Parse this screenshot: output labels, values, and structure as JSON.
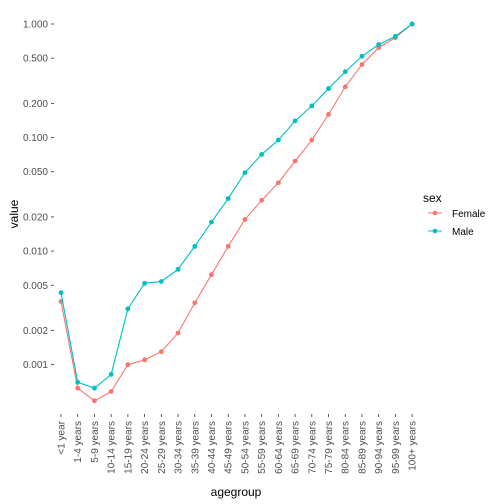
{
  "chart_data": {
    "type": "line",
    "xlabel": "agegroup",
    "ylabel": "value",
    "y_scale": "log",
    "ylim": [
      0.00045,
      1.0
    ],
    "y_ticks": [
      {
        "value": 0.001,
        "label": "0.001"
      },
      {
        "value": 0.002,
        "label": "0.002"
      },
      {
        "value": 0.005,
        "label": "0.005"
      },
      {
        "value": 0.01,
        "label": "0.010"
      },
      {
        "value": 0.02,
        "label": "0.020"
      },
      {
        "value": 0.05,
        "label": "0.050"
      },
      {
        "value": 0.1,
        "label": "0.100"
      },
      {
        "value": 0.2,
        "label": "0.200"
      },
      {
        "value": 0.5,
        "label": "0.500"
      },
      {
        "value": 1.0,
        "label": "1.000"
      }
    ],
    "categories": [
      "<1 year",
      "1-4 years",
      "5-9 years",
      "10-14 years",
      "15-19 years",
      "20-24 years",
      "25-29 years",
      "30-34 years",
      "35-39 years",
      "40-44 years",
      "45-49 years",
      "50-54 years",
      "55-59 years",
      "60-64 years",
      "65-69 years",
      "70-74 years",
      "75-79 years",
      "80-84 years",
      "85-89 years",
      "90-94 years",
      "95-99 years",
      "100+ years"
    ],
    "grid": false,
    "legend": {
      "title": "sex",
      "position": "right"
    },
    "series": [
      {
        "name": "Female",
        "color": "#F8766D",
        "values": [
          0.0036,
          0.00062,
          0.00048,
          0.00058,
          0.001,
          0.0011,
          0.0013,
          0.0019,
          0.0035,
          0.0062,
          0.011,
          0.019,
          0.028,
          0.04,
          0.062,
          0.095,
          0.16,
          0.28,
          0.44,
          0.62,
          0.76,
          1.0
        ]
      },
      {
        "name": "Male",
        "color": "#00BFC4",
        "values": [
          0.0043,
          0.0007,
          0.00062,
          0.00082,
          0.0031,
          0.0052,
          0.0054,
          0.0069,
          0.011,
          0.018,
          0.029,
          0.049,
          0.071,
          0.095,
          0.14,
          0.19,
          0.27,
          0.38,
          0.52,
          0.66,
          0.78,
          1.0
        ]
      }
    ]
  }
}
